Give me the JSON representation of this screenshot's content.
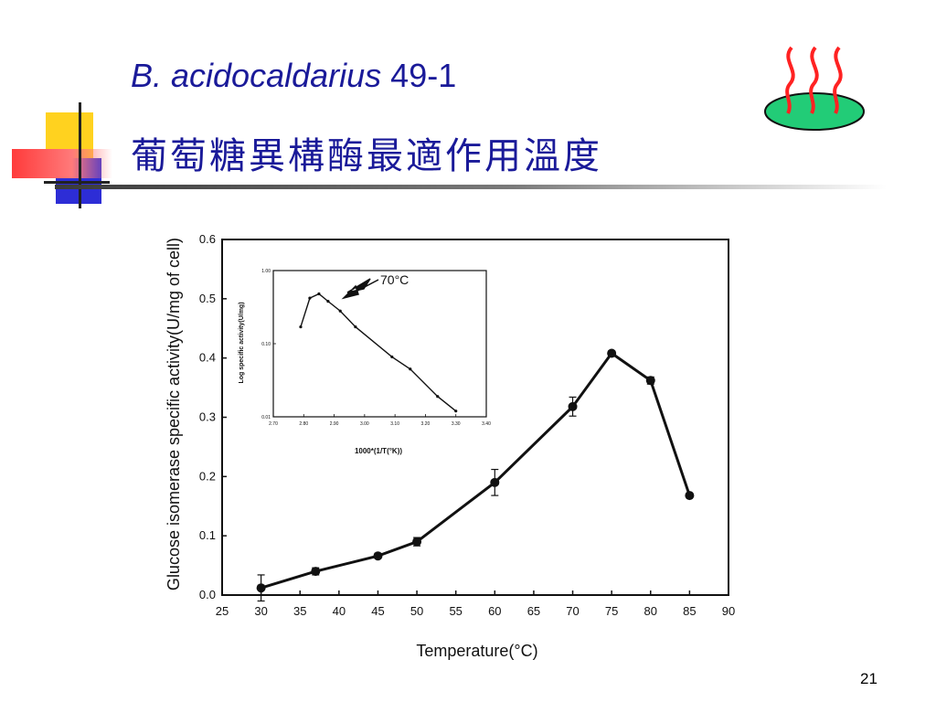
{
  "slide": {
    "title_species": "B. acidocaldarius",
    "title_strain": "49-1",
    "title_chinese": "葡萄糖異構酶最適作用溫度",
    "slide_number": "21"
  },
  "decoration": {
    "icon": "steaming-plate-icon",
    "colors": {
      "title": "#1a1a99",
      "yellow": "#ffd21f",
      "blue": "#2d2dd6",
      "red": "#ff3b3b",
      "plate": "#22cc77",
      "steam": "#ff2222"
    }
  },
  "chart_data": [
    {
      "type": "line",
      "xlabel": "Temperature(°C)",
      "ylabel": "Glucose isomerase specific activity(U/mg of cell)",
      "xlim": [
        25,
        90
      ],
      "ylim": [
        0,
        0.6
      ],
      "x_ticks": [
        25,
        30,
        35,
        40,
        45,
        50,
        55,
        60,
        65,
        70,
        75,
        80,
        85,
        90
      ],
      "y_ticks": [
        0.0,
        0.1,
        0.2,
        0.3,
        0.4,
        0.5,
        0.6
      ],
      "x_tick_labels": [
        "25",
        "30",
        "35",
        "40",
        "45",
        "50",
        "55",
        "60",
        "65",
        "70",
        "75",
        "80",
        "85",
        "90"
      ],
      "y_tick_labels": [
        "0.0",
        "0.1",
        "0.2",
        "0.3",
        "0.4",
        "0.5",
        "0.6"
      ],
      "x": [
        30,
        37,
        45,
        50,
        60,
        70,
        75,
        80,
        85
      ],
      "y": [
        0.012,
        0.04,
        0.066,
        0.09,
        0.19,
        0.318,
        0.408,
        0.362,
        0.168
      ],
      "error": [
        0.022,
        0.006,
        0.004,
        0.007,
        0.022,
        0.016,
        0.004,
        0.006,
        0.003
      ]
    },
    {
      "type": "line",
      "inset": true,
      "xlabel": "1000*(1/T(°K))",
      "ylabel": "Log specific activity(U/mg)",
      "xlim": [
        2.7,
        3.4
      ],
      "x_ticks": [
        2.7,
        2.8,
        2.9,
        3.0,
        3.1,
        3.2,
        3.3,
        3.4
      ],
      "x_tick_labels": [
        "2.70",
        "2.80",
        "2.90",
        "3.00",
        "3.10",
        "3.20",
        "3.30",
        "3.40"
      ],
      "y_scale": "log",
      "ylim": [
        0.01,
        1.0
      ],
      "y_ticks": [
        0.01,
        0.1,
        1.0
      ],
      "y_tick_labels": [
        "0.01",
        "0.10",
        "1.00"
      ],
      "x": [
        2.79,
        2.82,
        2.85,
        2.88,
        2.92,
        2.97,
        3.09,
        3.15,
        3.24,
        3.3
      ],
      "y": [
        0.17,
        0.42,
        0.48,
        0.38,
        0.28,
        0.17,
        0.066,
        0.045,
        0.019,
        0.012
      ],
      "annotation": "70°C"
    }
  ]
}
